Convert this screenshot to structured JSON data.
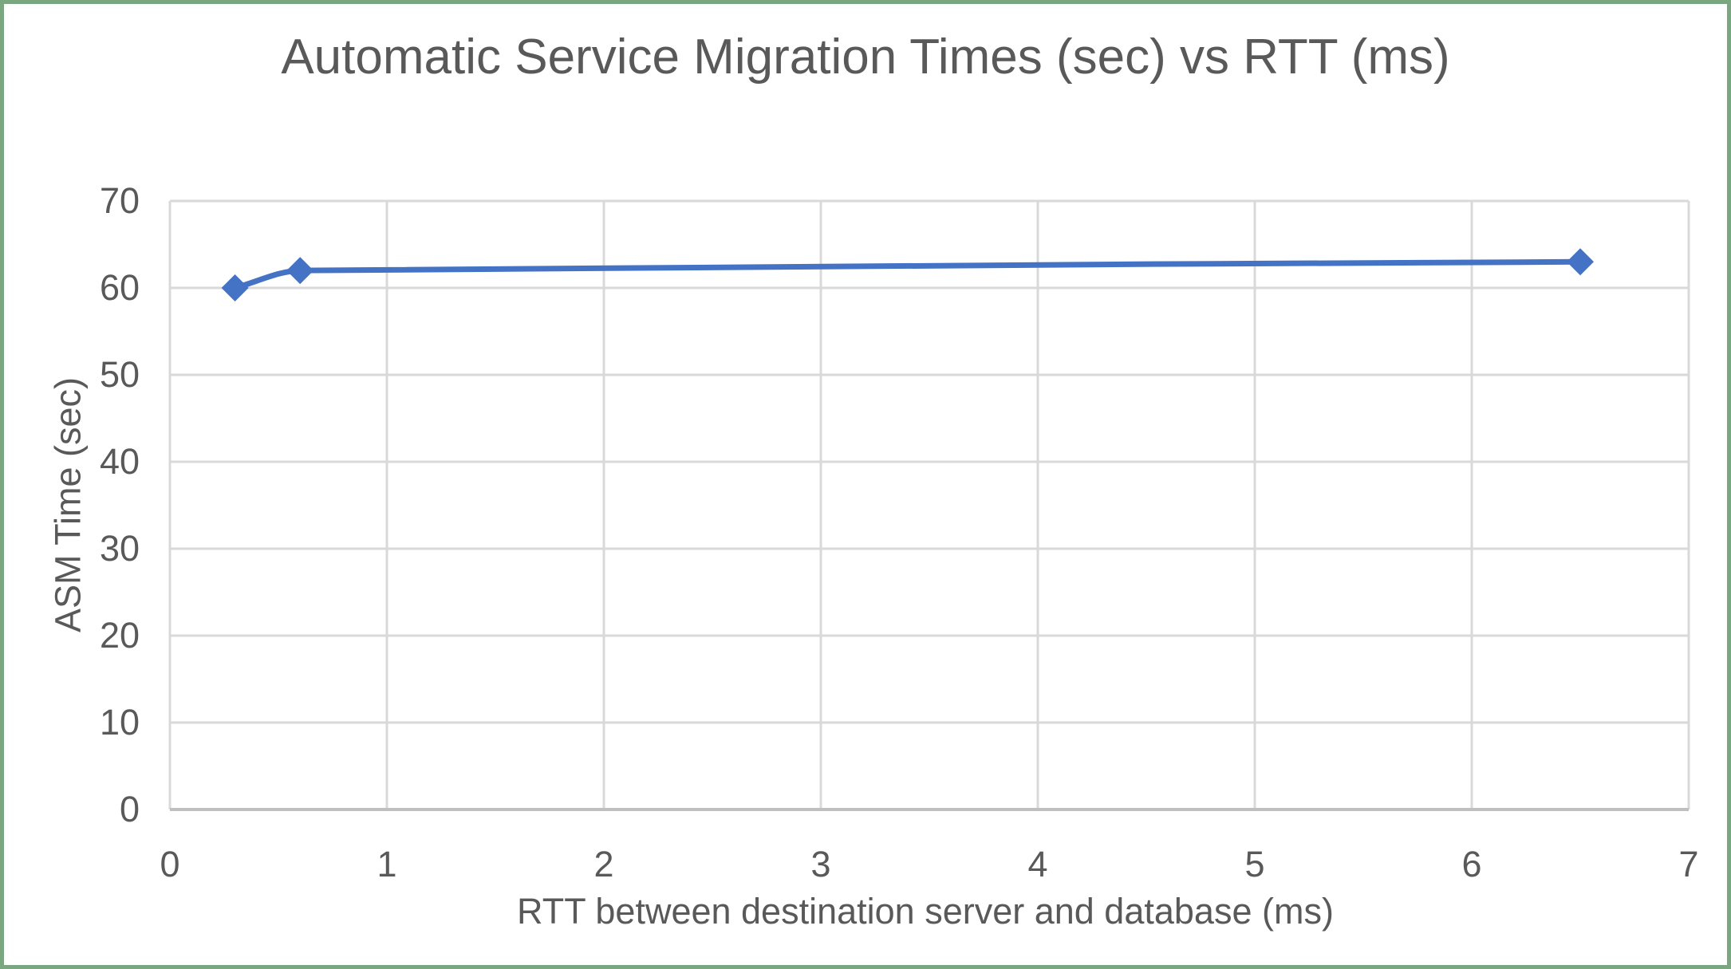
{
  "chart_data": {
    "type": "line",
    "title": "Automatic Service Migration Times (sec) vs RTT (ms)",
    "xlabel": "RTT between destination server and database (ms)",
    "ylabel": "ASM Time (sec)",
    "series": [
      {
        "name": "ASM Time",
        "x": [
          0.3,
          0.6,
          6.5
        ],
        "y": [
          60,
          62,
          63
        ]
      }
    ],
    "xlim": [
      0,
      7
    ],
    "ylim": [
      0,
      70
    ],
    "x_ticks": [
      0,
      1,
      2,
      3,
      4,
      5,
      6,
      7
    ],
    "y_ticks": [
      0,
      10,
      20,
      30,
      40,
      50,
      60,
      70
    ],
    "grid": true,
    "legend": false,
    "marker": "diamond",
    "line_smooth": true
  },
  "colors": {
    "line": "#4472C4",
    "marker": "#4472C4",
    "gridline": "#D9D9D9",
    "axis_line": "#BFBFBF",
    "text": "#595959",
    "frame_border": "#7AA77F",
    "background": "#FFFFFF"
  }
}
